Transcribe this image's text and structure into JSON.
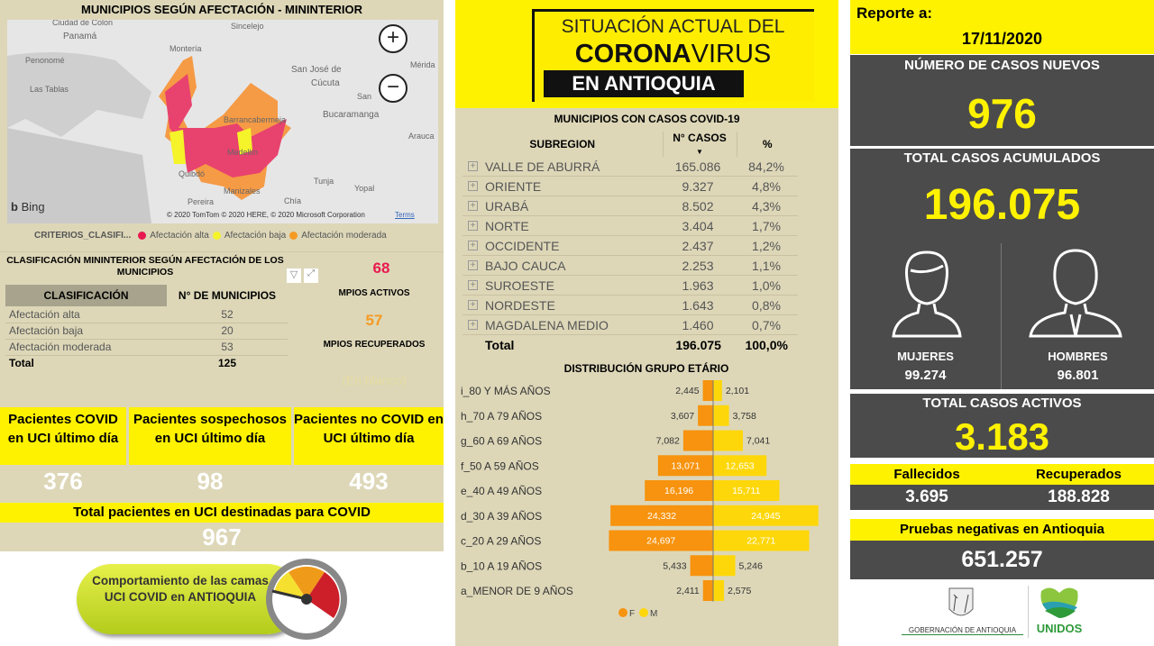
{
  "map_panel": {
    "title": "MUNICIPIOS SEGÚN AFECTACIÓN - MININTERIOR",
    "places": [
      "Ciudad de Colon",
      "Panamá",
      "Penonomé",
      "Las Tablas",
      "Sincelejo",
      "Montería",
      "San José de",
      "Cúcuta",
      "San",
      "Mérida",
      "Bucaramanga",
      "Barrancabermeja",
      "Arauca",
      "Medellín",
      "Quibdó",
      "Tunja",
      "Yopal",
      "Manizales",
      "Pereira",
      "Chía"
    ],
    "zoom_in": "+",
    "zoom_out": "−",
    "bing": "Bing",
    "copyright": "© 2020 TomTom © 2020 HERE, © 2020 Microsoft Corporation",
    "terms": "Terms",
    "legend_title": "CRITERIOS_CLASIFI...",
    "legend": [
      {
        "label": "Afectación alta",
        "color": "#e8194f"
      },
      {
        "label": "Afectación baja",
        "color": "#f5f32a"
      },
      {
        "label": "Afectación moderada",
        "color": "#f59a23"
      }
    ]
  },
  "classification": {
    "title": "CLASIFICACIÓN MININTERIOR SEGÚN AFECTACIÓN DE LOS MUNICIPIOS",
    "headers": [
      "CLASIFICACIÓN",
      "N° DE MUNICIPIOS"
    ],
    "rows": [
      [
        "Afectación alta",
        "52"
      ],
      [
        "Afectación baja",
        "20"
      ],
      [
        "Afectación moderada",
        "53"
      ]
    ],
    "total": [
      "Total",
      "125"
    ]
  },
  "mpios": {
    "activos": "68",
    "activos_label": "MPIOS ACTIVOS",
    "recuperados": "57",
    "recuperados_label": "MPIOS RECUPERADOS",
    "blank": "(En blanco)"
  },
  "uci": {
    "headers": [
      "Pacientes COVID en UCI último día",
      "Pacientes sospechosos en UCI último día",
      "Pacientes no COVID en UCI último día"
    ],
    "values": [
      "376",
      "98",
      "493"
    ],
    "total_label": "Total pacientes en UCI destinadas para COVID",
    "total": "967",
    "button": "Comportamiento de las camas UCI COVID en ANTIOQUIA"
  },
  "banner": {
    "line1": "SITUACIÓN ACTUAL DEL",
    "line2a": "CORONA",
    "line2b": "VIRUS",
    "line3": "EN ANTIOQUIA"
  },
  "subregions": {
    "title": "MUNICIPIOS CON CASOS COVID-19",
    "headers": [
      "SUBREGION",
      "N° CASOS",
      "%"
    ],
    "rows": [
      [
        "VALLE DE ABURRÁ",
        "165.086",
        "84,2%"
      ],
      [
        "ORIENTE",
        "9.327",
        "4,8%"
      ],
      [
        "URABÁ",
        "8.502",
        "4,3%"
      ],
      [
        "NORTE",
        "3.404",
        "1,7%"
      ],
      [
        "OCCIDENTE",
        "2.437",
        "1,2%"
      ],
      [
        "BAJO CAUCA",
        "2.253",
        "1,1%"
      ],
      [
        "SUROESTE",
        "1.963",
        "1,0%"
      ],
      [
        "NORDESTE",
        "1.643",
        "0,8%"
      ],
      [
        "MAGDALENA MEDIO",
        "1.460",
        "0,7%"
      ]
    ],
    "total": [
      "Total",
      "196.075",
      "100,0%"
    ]
  },
  "chart_data": {
    "type": "bar",
    "title": "DISTRIBUCIÓN GRUPO ETÁRIO",
    "orientation": "horizontal-diverging",
    "categories": [
      "i_80 Y MÁS AÑOS",
      "h_70 A 79 AÑOS",
      "g_60 A 69 AÑOS",
      "f_50 A 59 AÑOS",
      "e_40 A 49 AÑOS",
      "d_30 A 39 AÑOS",
      "c_20 A 29 AÑOS",
      "b_10 A 19 AÑOS",
      "a_MENOR DE 9 AÑOS"
    ],
    "series": [
      {
        "name": "F",
        "color": "#f7930e",
        "values": [
          2445,
          3607,
          7082,
          13071,
          16196,
          24332,
          24697,
          5433,
          2411
        ],
        "labels": [
          "2,445",
          "3,607",
          "7,082",
          "13,071",
          "16,196",
          "24,332",
          "24,697",
          "5,433",
          "2,411"
        ]
      },
      {
        "name": "M",
        "color": "#fed70a",
        "values": [
          2101,
          3758,
          7041,
          12653,
          15711,
          24945,
          22771,
          5246,
          2575
        ],
        "labels": [
          "2,101",
          "3,758",
          "7,041",
          "12,653",
          "15,711",
          "24,945",
          "22,771",
          "5,246",
          "2,575"
        ]
      }
    ],
    "legend": "bottom",
    "grid": false
  },
  "report": {
    "label": "Reporte a:",
    "date": "17/11/2020",
    "new_cases_label": "NÚMERO DE CASOS NUEVOS",
    "new_cases": "976",
    "total_label": "TOTAL CASOS ACUMULADOS",
    "total": "196.075",
    "women_label": "MUJERES",
    "women": "99.274",
    "men_label": "HOMBRES",
    "men": "96.801",
    "active_label": "TOTAL CASOS ACTIVOS",
    "active": "3.183",
    "deaths_label": "Fallecidos",
    "deaths": "3.695",
    "recovered_label": "Recuperados",
    "recovered": "188.828",
    "negative_label": "Pruebas negativas en Antioquia",
    "negative": "651.257",
    "logo1": "GOBERNACIÓN DE ANTIOQUIA",
    "logo2": "UNIDOS"
  },
  "colors": {
    "yellow": "#fff200",
    "dark": "#4b4b4b",
    "beige": "#ddd7b8",
    "alta": "#e8194f",
    "moderada": "#f7930e"
  }
}
